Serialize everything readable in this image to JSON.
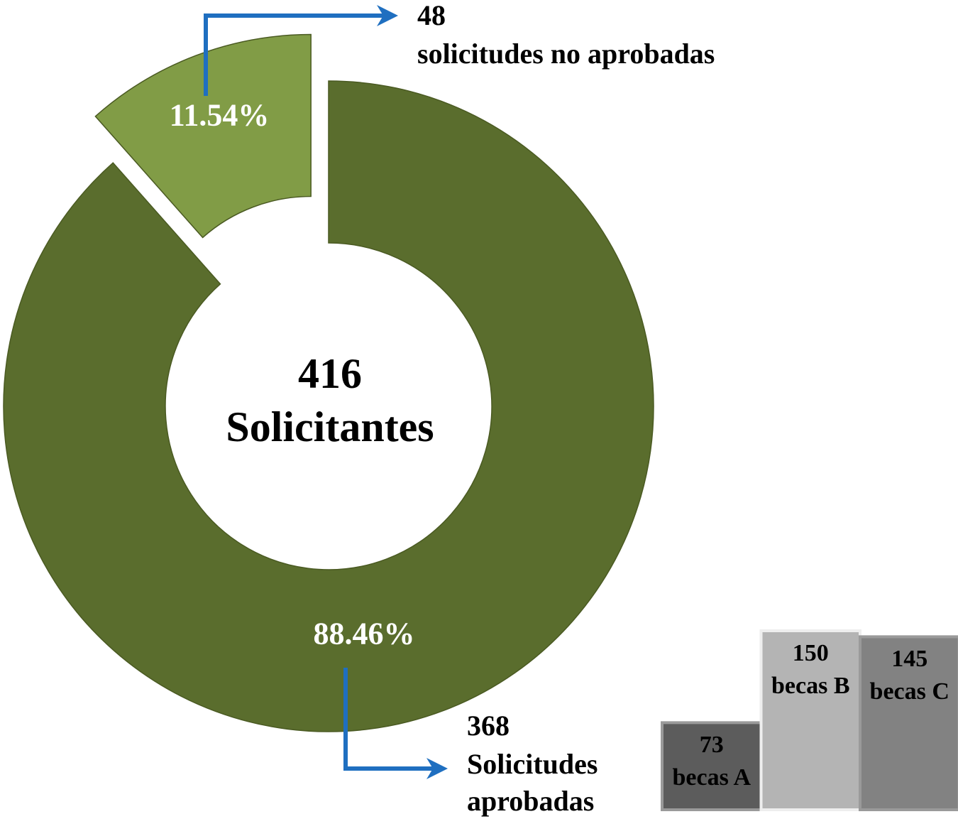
{
  "chart_data": [
    {
      "type": "donut",
      "categories": [
        "Solicitudes aprobadas",
        "solicitudes no aprobadas"
      ],
      "values": [
        88.46,
        11.54
      ],
      "value_labels": [
        "88.46%",
        "11.54%"
      ],
      "counts": [
        368,
        48
      ],
      "colors": [
        "#5a6d2d",
        "#819c46"
      ],
      "explode": [
        false,
        true
      ],
      "total": 416,
      "total_label": "Solicitantes"
    },
    {
      "type": "bar",
      "categories": [
        "becas A",
        "becas B",
        "becas C"
      ],
      "values": [
        73,
        150,
        145
      ],
      "colors": [
        "#5c5c5c",
        "#b4b4b4",
        "#828282"
      ]
    }
  ]
}
